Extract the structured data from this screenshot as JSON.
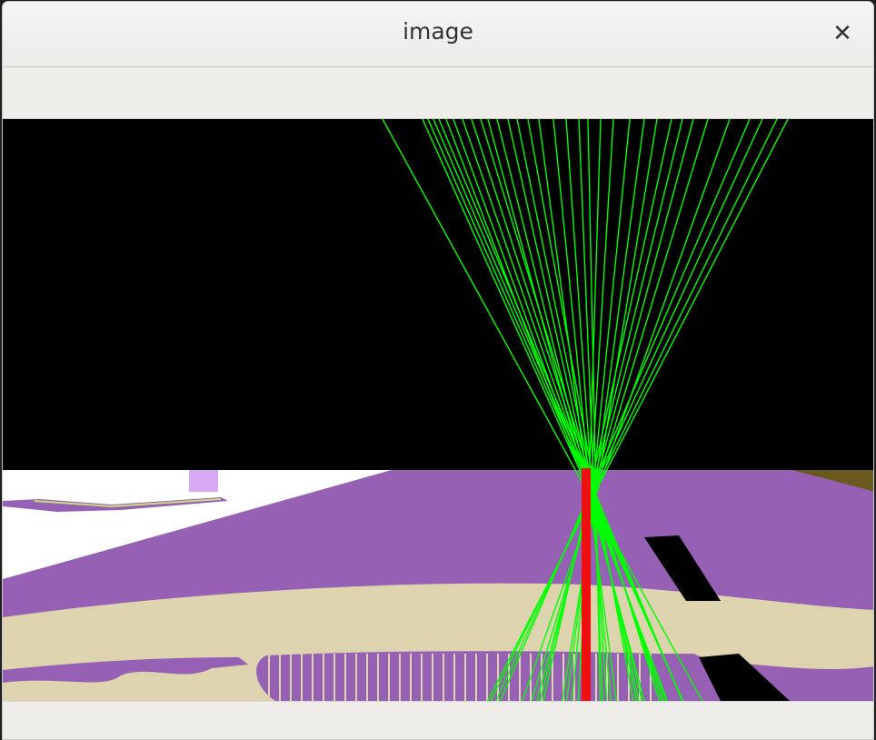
{
  "window": {
    "title": "image",
    "close_icon": "close-icon"
  },
  "colors": {
    "sky": "#000000",
    "road": "#9660b4",
    "sidewalk": "#ddd3ae",
    "white_area": "#ffffff",
    "lines": "#00ff00",
    "center_line": "#ee1010",
    "black_obstacle": "#000000",
    "light_purple": "#d6aaf2"
  }
}
